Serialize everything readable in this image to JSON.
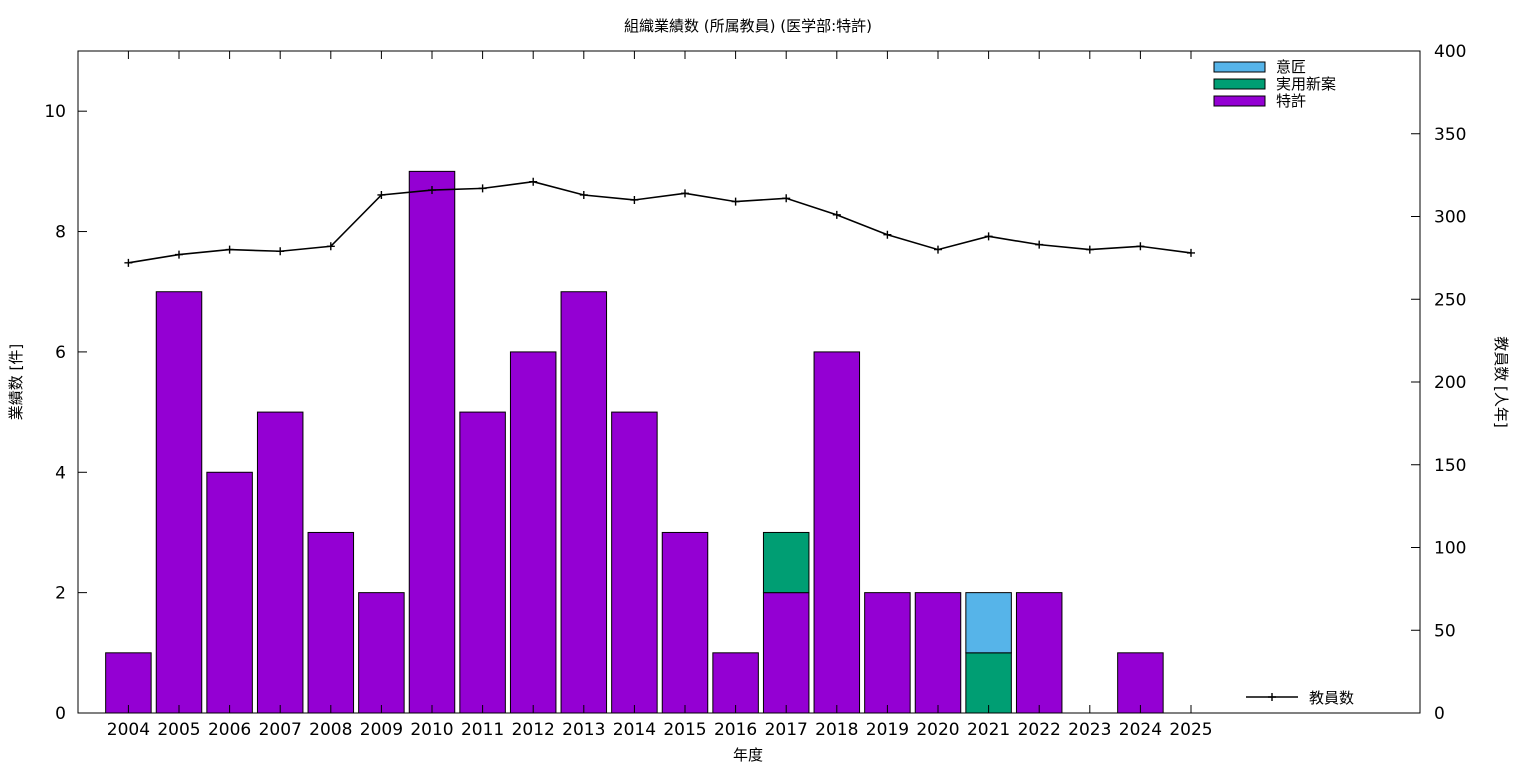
{
  "chart_data": {
    "type": "bar",
    "title": "組織業績数 (所属教員) (医学部:特許)",
    "xlabel": "年度",
    "ylabel": "業績数 [件]",
    "y2label": "教員数 [人年]",
    "categories": [
      "2004",
      "2005",
      "2006",
      "2007",
      "2008",
      "2009",
      "2010",
      "2011",
      "2012",
      "2013",
      "2014",
      "2015",
      "2016",
      "2017",
      "2018",
      "2019",
      "2020",
      "2021",
      "2022",
      "2023",
      "2024",
      "2025"
    ],
    "ylim": [
      0,
      11
    ],
    "y2lim": [
      0,
      400
    ],
    "yticks": [
      0,
      2,
      4,
      6,
      8,
      10
    ],
    "y2ticks": [
      0,
      50,
      100,
      150,
      200,
      250,
      300,
      350,
      400
    ],
    "stacked": true,
    "series": [
      {
        "name": "特許",
        "color": "#9400d3",
        "values": [
          1,
          7,
          4,
          5,
          3,
          2,
          9,
          5,
          6,
          7,
          5,
          3,
          1,
          2,
          6,
          2,
          2,
          0,
          2,
          0,
          1,
          0
        ]
      },
      {
        "name": "実用新案",
        "color": "#009e73",
        "values": [
          0,
          0,
          0,
          0,
          0,
          0,
          0,
          0,
          0,
          0,
          0,
          0,
          0,
          1,
          0,
          0,
          0,
          1,
          0,
          0,
          0,
          0
        ]
      },
      {
        "name": "意匠",
        "color": "#56b4e9",
        "values": [
          0,
          0,
          0,
          0,
          0,
          0,
          0,
          0,
          0,
          0,
          0,
          0,
          0,
          0,
          0,
          0,
          0,
          1,
          0,
          0,
          0,
          0
        ]
      }
    ],
    "line_series": {
      "name": "教員数",
      "axis": "y2",
      "color": "#000000",
      "values": [
        272,
        277,
        280,
        279,
        282,
        313,
        316,
        317,
        321,
        313,
        310,
        314,
        309,
        311,
        301,
        289,
        280,
        288,
        283,
        280,
        282,
        278
      ]
    },
    "legend_placement": "top-right",
    "grid": false
  }
}
